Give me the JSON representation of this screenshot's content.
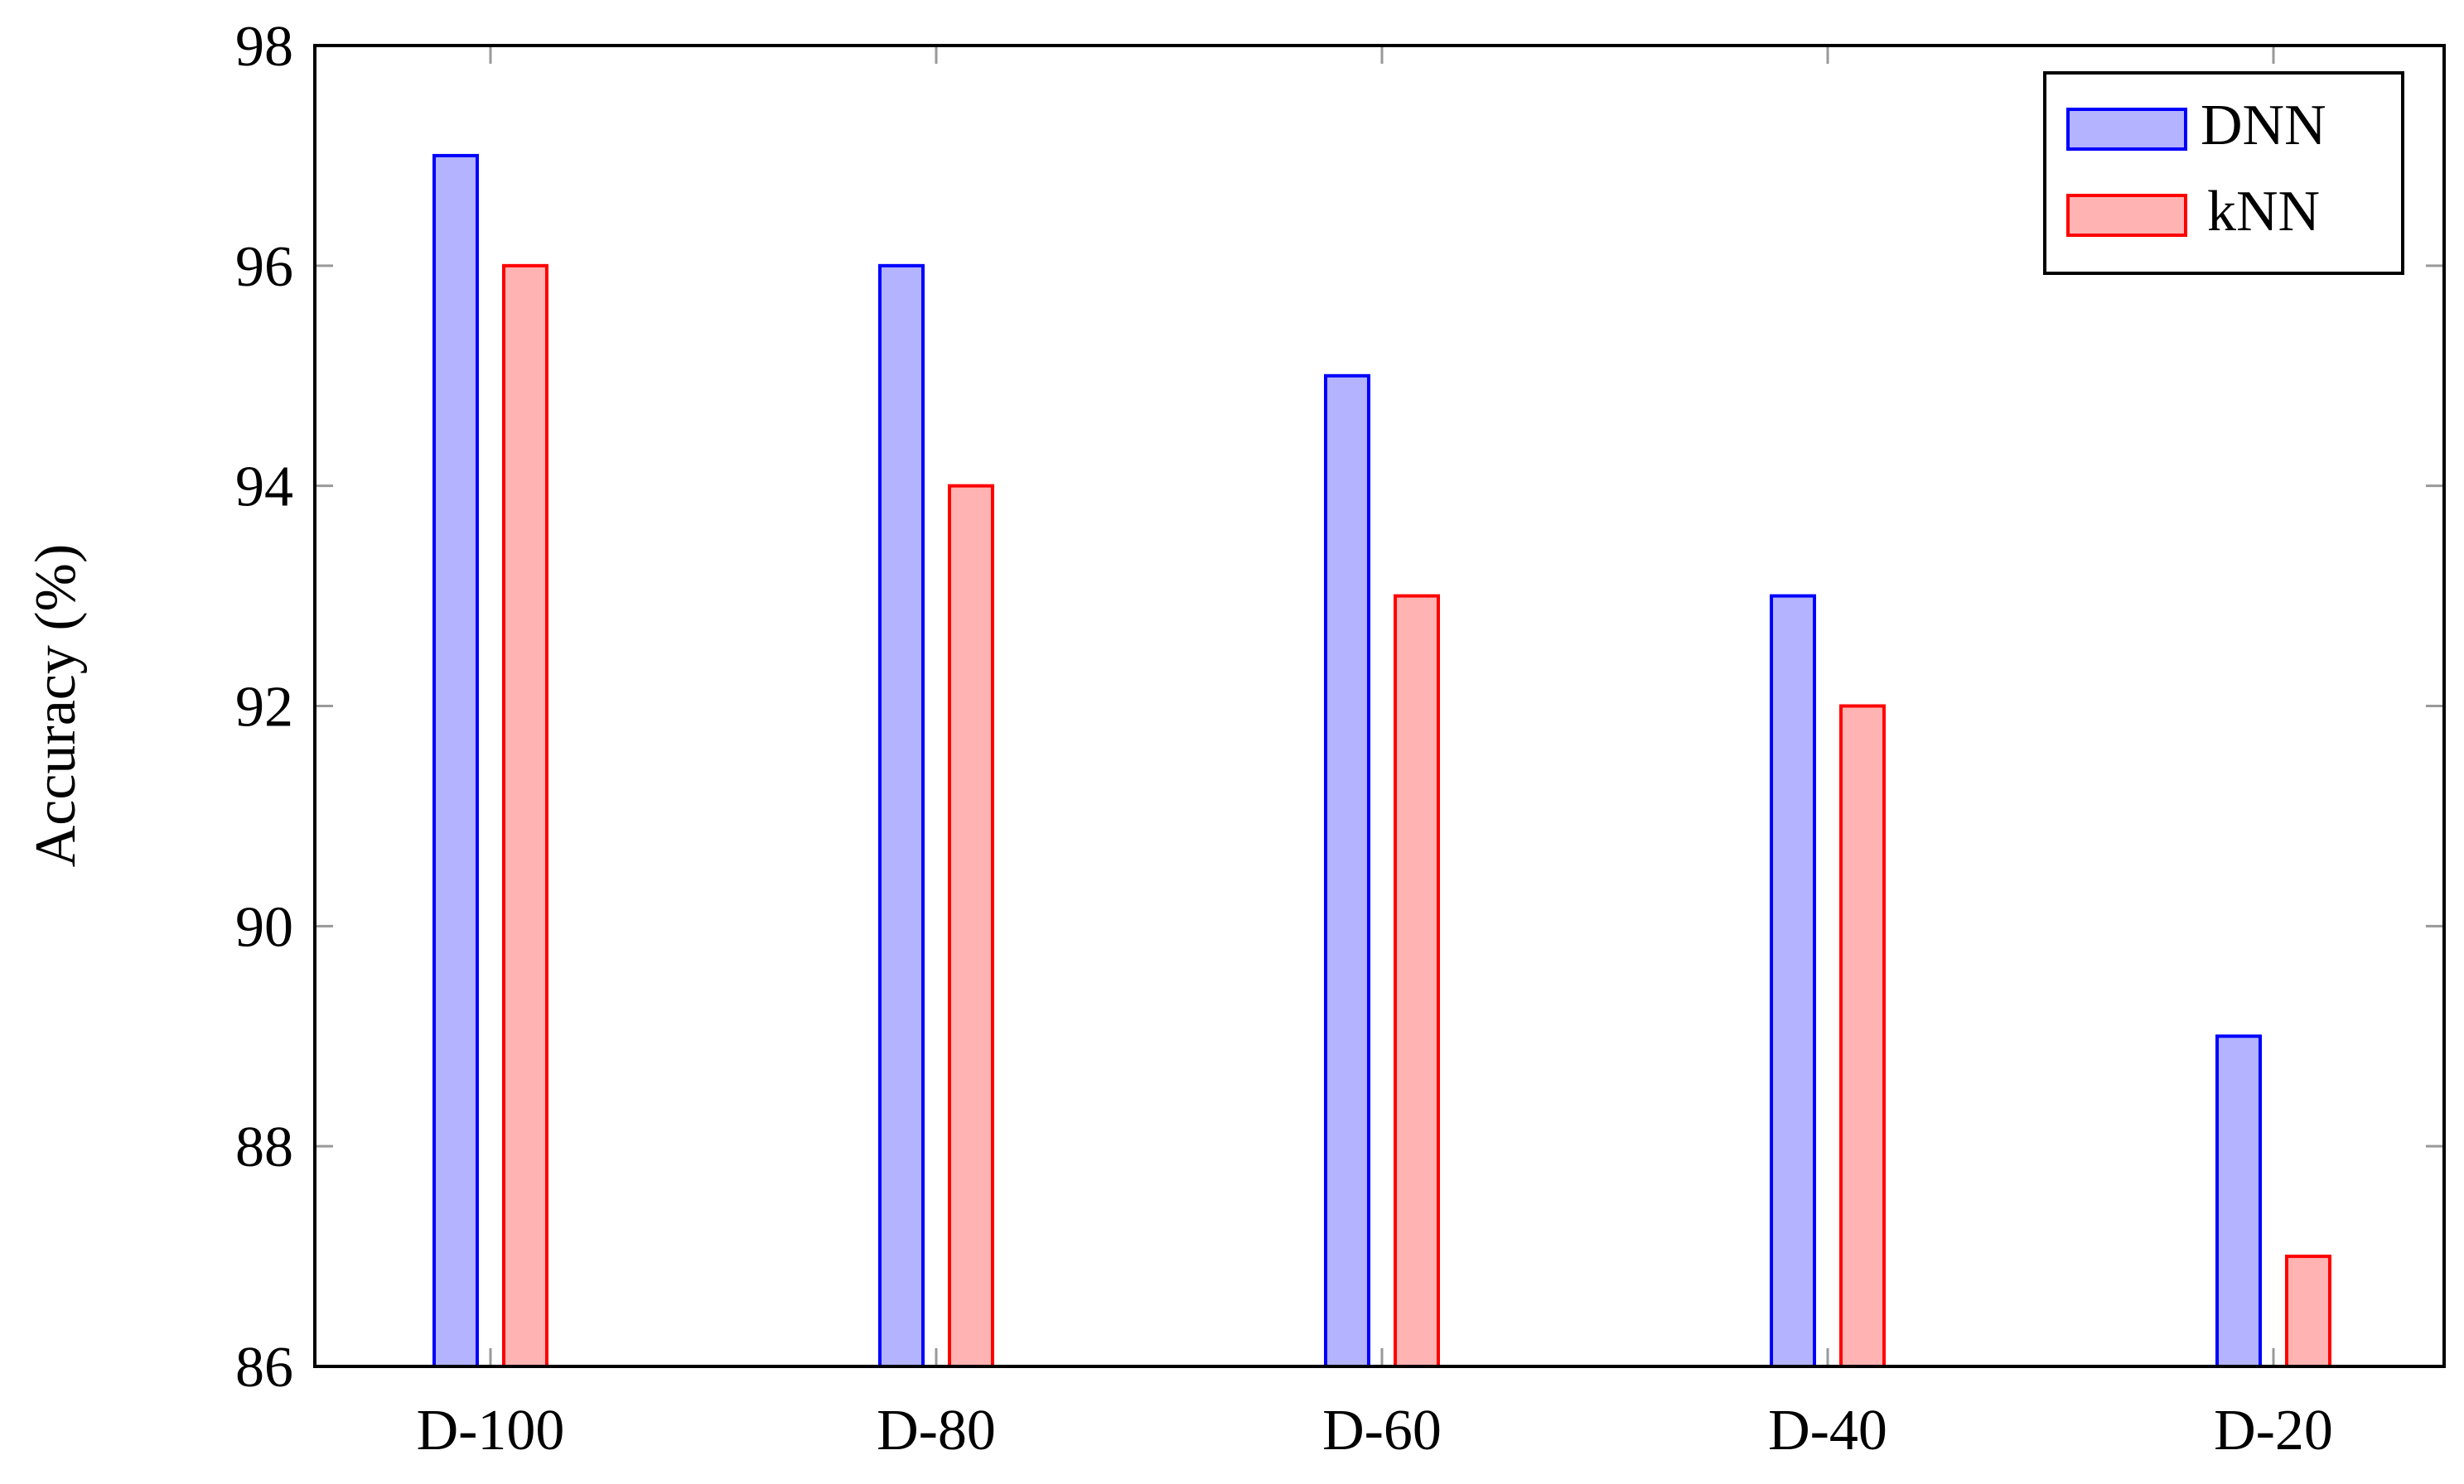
{
  "chart_data": {
    "type": "bar",
    "title": "",
    "xlabel": "",
    "ylabel": "Accuracy (%)",
    "ylim": [
      86,
      98
    ],
    "yticks": [
      86,
      88,
      90,
      92,
      94,
      96,
      98
    ],
    "categories": [
      "D-100",
      "D-80",
      "D-60",
      "D-40",
      "D-20"
    ],
    "series": [
      {
        "name": "DNN",
        "values": [
          97,
          96,
          95,
          93,
          89
        ],
        "fill": "#b3b3ff",
        "stroke": "#0000ff"
      },
      {
        "name": "kNN",
        "values": [
          96,
          94,
          93,
          92,
          87
        ],
        "fill": "#ffb3b3",
        "stroke": "#ff0000"
      }
    ],
    "legend_position": "top-right",
    "grid": false
  }
}
